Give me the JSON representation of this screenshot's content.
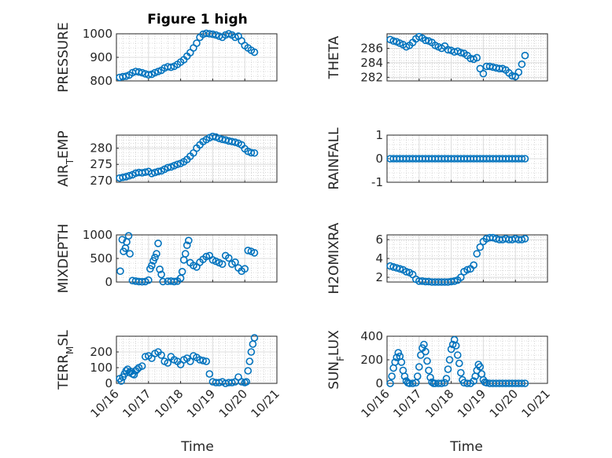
{
  "figure_title": "Figure 1 high",
  "colors": {
    "marker": "#0072BD",
    "axis": "#262626",
    "grid": "#dcdcdc"
  },
  "x_axis": {
    "label": "Time",
    "ticks": [
      "10/16",
      "10/17",
      "10/18",
      "10/19",
      "10/20",
      "10/21"
    ],
    "tick_values": [
      0,
      1,
      2,
      3,
      4,
      5
    ]
  },
  "chart_data": [
    {
      "type": "scatter",
      "ylabel": "PRESSURE",
      "ylabel_sub": "",
      "ylim": [
        800,
        1000
      ],
      "yticks": [
        800,
        900,
        1000
      ],
      "xlim": [
        0,
        5
      ],
      "x": [
        0.1,
        0.2,
        0.3,
        0.4,
        0.5,
        0.6,
        0.7,
        0.8,
        0.9,
        1.0,
        1.1,
        1.2,
        1.3,
        1.4,
        1.5,
        1.6,
        1.7,
        1.8,
        1.9,
        2.0,
        2.1,
        2.2,
        2.3,
        2.4,
        2.5,
        2.6,
        2.7,
        2.8,
        2.9,
        3.0,
        3.1,
        3.2,
        3.3,
        3.4,
        3.5,
        3.6,
        3.7,
        3.8,
        3.9,
        4.0,
        4.1,
        4.2,
        4.3
      ],
      "y": [
        815,
        818,
        820,
        825,
        835,
        840,
        838,
        835,
        830,
        826,
        828,
        835,
        840,
        845,
        855,
        860,
        858,
        862,
        870,
        880,
        890,
        905,
        920,
        940,
        960,
        985,
        998,
        1002,
        1000,
        998,
        995,
        990,
        985,
        995,
        1000,
        995,
        985,
        990,
        970,
        950,
        940,
        930,
        922
      ]
    },
    {
      "type": "scatter",
      "ylabel": "THETA",
      "ylabel_sub": "",
      "ylim": [
        281.5,
        288
      ],
      "yticks": [
        282,
        284,
        286
      ],
      "xlim": [
        0,
        5
      ],
      "x": [
        0.1,
        0.2,
        0.3,
        0.4,
        0.5,
        0.6,
        0.7,
        0.8,
        0.9,
        1.0,
        1.1,
        1.2,
        1.3,
        1.4,
        1.5,
        1.6,
        1.7,
        1.8,
        1.9,
        2.0,
        2.1,
        2.2,
        2.3,
        2.4,
        2.5,
        2.6,
        2.7,
        2.8,
        2.9,
        3.0,
        3.1,
        3.2,
        3.3,
        3.4,
        3.5,
        3.6,
        3.7,
        3.8,
        3.9,
        4.0,
        4.1,
        4.2,
        4.3
      ],
      "y": [
        287.2,
        287.0,
        286.9,
        286.7,
        286.5,
        286.2,
        286.4,
        286.8,
        287.3,
        287.6,
        287.4,
        287.1,
        287.0,
        286.8,
        286.4,
        286.2,
        286.0,
        286.3,
        285.8,
        285.7,
        285.5,
        285.6,
        285.4,
        285.3,
        285.0,
        284.6,
        284.5,
        284.7,
        283.2,
        282.5,
        283.5,
        283.5,
        283.4,
        283.3,
        283.2,
        283.2,
        283.0,
        282.6,
        282.2,
        282.1,
        282.7,
        283.8,
        285.0
      ]
    },
    {
      "type": "scatter",
      "ylabel": "AIR",
      "ylabel_sub": "T",
      "ylabel_rest": "EMP",
      "ylim": [
        269.5,
        284
      ],
      "yticks": [
        270,
        275,
        280
      ],
      "xlim": [
        0,
        5
      ],
      "x": [
        0.1,
        0.2,
        0.3,
        0.4,
        0.5,
        0.6,
        0.7,
        0.8,
        0.9,
        1.0,
        1.1,
        1.2,
        1.3,
        1.4,
        1.5,
        1.6,
        1.7,
        1.8,
        1.9,
        2.0,
        2.1,
        2.2,
        2.3,
        2.4,
        2.5,
        2.6,
        2.7,
        2.8,
        2.9,
        3.0,
        3.1,
        3.2,
        3.3,
        3.4,
        3.5,
        3.6,
        3.7,
        3.8,
        3.9,
        4.0,
        4.1,
        4.2,
        4.3
      ],
      "y": [
        270.8,
        271.0,
        271.2,
        271.5,
        271.8,
        272.3,
        272.5,
        272.4,
        272.6,
        272.8,
        272.2,
        272.5,
        272.8,
        273.0,
        273.5,
        274.0,
        274.2,
        274.6,
        275.0,
        275.3,
        275.8,
        276.5,
        277.5,
        278.5,
        280.0,
        281.0,
        282.0,
        282.6,
        283.2,
        283.6,
        283.4,
        283.0,
        282.7,
        282.5,
        282.2,
        282.0,
        281.8,
        281.5,
        281.0,
        279.8,
        279.0,
        278.6,
        278.5
      ]
    },
    {
      "type": "scatter",
      "ylabel": "RAINFALL",
      "ylabel_sub": "",
      "ylim": [
        -1,
        1
      ],
      "yticks": [
        -1,
        0,
        1
      ],
      "xlim": [
        0,
        5
      ],
      "x": [
        0.1,
        0.2,
        0.3,
        0.4,
        0.5,
        0.6,
        0.7,
        0.8,
        0.9,
        1.0,
        1.1,
        1.2,
        1.3,
        1.4,
        1.5,
        1.6,
        1.7,
        1.8,
        1.9,
        2.0,
        2.1,
        2.2,
        2.3,
        2.4,
        2.5,
        2.6,
        2.7,
        2.8,
        2.9,
        3.0,
        3.1,
        3.2,
        3.3,
        3.4,
        3.5,
        3.6,
        3.7,
        3.8,
        3.9,
        4.0,
        4.1,
        4.2,
        4.3
      ],
      "y": [
        0,
        0,
        0,
        0,
        0,
        0,
        0,
        0,
        0,
        0,
        0,
        0,
        0,
        0,
        0,
        0,
        0,
        0,
        0,
        0,
        0,
        0,
        0,
        0,
        0,
        0,
        0,
        0,
        0,
        0,
        0,
        0,
        0,
        0,
        0,
        0,
        0,
        0,
        0,
        0,
        0,
        0,
        0
      ]
    },
    {
      "type": "scatter",
      "ylabel": "MIXDEPTH",
      "ylabel_sub": "",
      "ylim": [
        0,
        1000
      ],
      "yticks": [
        0,
        500,
        1000
      ],
      "xlim": [
        0,
        5
      ],
      "x": [
        0.12,
        0.18,
        0.22,
        0.28,
        0.32,
        0.38,
        0.42,
        0.5,
        0.6,
        0.7,
        0.8,
        0.9,
        1.0,
        1.05,
        1.1,
        1.15,
        1.2,
        1.25,
        1.3,
        1.35,
        1.4,
        1.45,
        1.6,
        1.7,
        1.8,
        1.9,
        2.0,
        2.05,
        2.1,
        2.15,
        2.2,
        2.25,
        2.3,
        2.4,
        2.5,
        2.6,
        2.7,
        2.8,
        2.9,
        3.0,
        3.1,
        3.2,
        3.3,
        3.4,
        3.5,
        3.6,
        3.7,
        3.8,
        3.9,
        4.0,
        4.1,
        4.2,
        4.3
      ],
      "y": [
        230,
        900,
        650,
        720,
        850,
        980,
        600,
        30,
        20,
        10,
        5,
        10,
        40,
        280,
        350,
        450,
        520,
        600,
        820,
        270,
        160,
        10,
        15,
        20,
        10,
        20,
        80,
        220,
        470,
        600,
        780,
        880,
        410,
        350,
        320,
        420,
        480,
        540,
        560,
        470,
        440,
        410,
        380,
        560,
        510,
        380,
        420,
        300,
        230,
        280,
        670,
        650,
        620
      ]
    },
    {
      "type": "scatter",
      "ylabel": "H2OMIXRA",
      "ylabel_sub": "",
      "ylim": [
        1.5,
        6.5
      ],
      "yticks": [
        2,
        4,
        6
      ],
      "xlim": [
        0,
        5
      ],
      "x": [
        0.1,
        0.2,
        0.3,
        0.4,
        0.5,
        0.6,
        0.7,
        0.8,
        0.9,
        1.0,
        1.1,
        1.2,
        1.3,
        1.4,
        1.5,
        1.6,
        1.7,
        1.8,
        1.9,
        2.0,
        2.1,
        2.2,
        2.3,
        2.4,
        2.5,
        2.6,
        2.7,
        2.8,
        2.9,
        3.0,
        3.1,
        3.2,
        3.3,
        3.4,
        3.5,
        3.6,
        3.7,
        3.8,
        3.9,
        4.0,
        4.1,
        4.2,
        4.3
      ],
      "y": [
        3.2,
        3.1,
        3.0,
        2.9,
        2.8,
        2.6,
        2.5,
        2.3,
        1.8,
        1.6,
        1.6,
        1.55,
        1.55,
        1.5,
        1.5,
        1.5,
        1.5,
        1.5,
        1.5,
        1.55,
        1.6,
        1.7,
        2.0,
        2.6,
        2.8,
        2.9,
        3.3,
        4.5,
        5.2,
        5.8,
        6.1,
        6.2,
        6.2,
        6.1,
        6.0,
        6.0,
        6.1,
        6.0,
        6.0,
        6.1,
        6.0,
        6.0,
        6.1
      ]
    },
    {
      "type": "scatter",
      "ylabel": "TERR",
      "ylabel_sub": "M",
      "ylabel_rest": "SL",
      "ylim": [
        0,
        300
      ],
      "yticks": [
        0,
        100,
        200
      ],
      "xlim": [
        0,
        5
      ],
      "x": [
        0.1,
        0.15,
        0.2,
        0.25,
        0.3,
        0.35,
        0.4,
        0.45,
        0.5,
        0.55,
        0.6,
        0.65,
        0.7,
        0.8,
        0.9,
        1.0,
        1.1,
        1.2,
        1.3,
        1.4,
        1.5,
        1.6,
        1.7,
        1.8,
        1.9,
        2.0,
        2.1,
        2.2,
        2.3,
        2.4,
        2.5,
        2.6,
        2.7,
        2.8,
        2.9,
        3.0,
        3.1,
        3.2,
        3.3,
        3.4,
        3.5,
        3.6,
        3.7,
        3.8,
        3.9,
        4.0,
        4.05,
        4.1,
        4.15,
        4.2,
        4.25,
        4.3
      ],
      "y": [
        30,
        15,
        40,
        60,
        80,
        90,
        70,
        75,
        60,
        55,
        80,
        90,
        100,
        110,
        170,
        175,
        160,
        190,
        200,
        180,
        140,
        130,
        170,
        150,
        140,
        120,
        150,
        160,
        140,
        175,
        165,
        150,
        145,
        140,
        60,
        10,
        5,
        5,
        10,
        0,
        5,
        5,
        10,
        40,
        10,
        5,
        10,
        80,
        140,
        200,
        250,
        290
      ]
    },
    {
      "type": "scatter",
      "ylabel": "SUN",
      "ylabel_sub": "F",
      "ylabel_rest": "LUX",
      "ylim": [
        0,
        400
      ],
      "yticks": [
        0,
        200,
        400
      ],
      "xlim": [
        0,
        5
      ],
      "x": [
        0.1,
        0.15,
        0.2,
        0.25,
        0.3,
        0.35,
        0.4,
        0.45,
        0.5,
        0.55,
        0.6,
        0.65,
        0.7,
        0.8,
        0.9,
        0.95,
        1.0,
        1.05,
        1.1,
        1.15,
        1.2,
        1.25,
        1.3,
        1.35,
        1.4,
        1.45,
        1.5,
        1.6,
        1.7,
        1.8,
        1.85,
        1.9,
        1.95,
        2.0,
        2.05,
        2.1,
        2.15,
        2.2,
        2.25,
        2.3,
        2.35,
        2.4,
        2.5,
        2.6,
        2.7,
        2.75,
        2.8,
        2.85,
        2.9,
        2.95,
        3.0,
        3.05,
        3.1,
        3.2,
        3.3,
        3.4,
        3.5,
        3.6,
        3.7,
        3.8,
        3.9,
        4.0,
        4.1,
        4.2,
        4.3
      ],
      "y": [
        0,
        60,
        130,
        180,
        220,
        260,
        230,
        180,
        110,
        60,
        20,
        5,
        0,
        0,
        5,
        60,
        140,
        240,
        300,
        330,
        270,
        190,
        110,
        50,
        10,
        0,
        0,
        0,
        0,
        5,
        40,
        120,
        200,
        290,
        330,
        370,
        320,
        240,
        170,
        90,
        30,
        5,
        0,
        0,
        20,
        60,
        110,
        160,
        140,
        80,
        30,
        10,
        5,
        0,
        0,
        0,
        0,
        0,
        0,
        0,
        0,
        0,
        0,
        0,
        0
      ]
    }
  ]
}
